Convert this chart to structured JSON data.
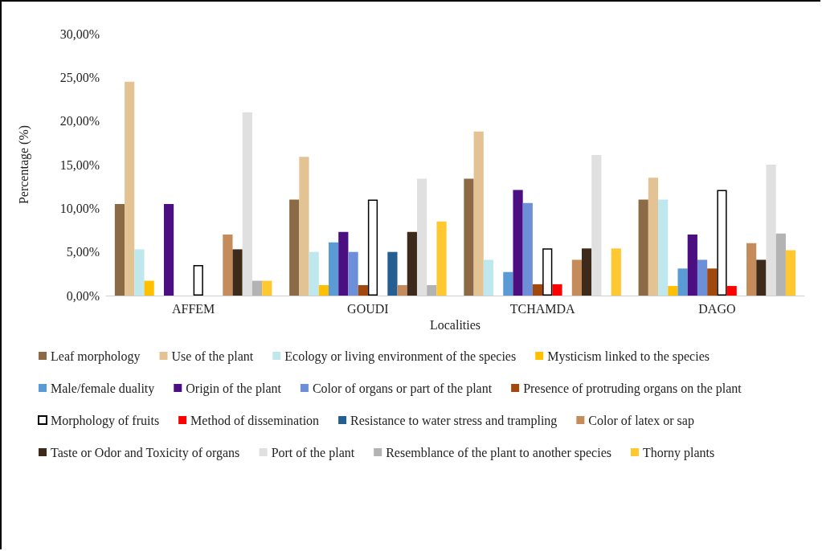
{
  "chart_data": {
    "type": "bar",
    "xlabel": "Localities",
    "ylabel": "Percentage (%)",
    "categories": [
      "AFFEM",
      "GOUDI",
      "TCHAMDA",
      "DAGO"
    ],
    "ylim": [
      0,
      30
    ],
    "yticks": [
      {
        "value": 0,
        "label": "0,00%"
      },
      {
        "value": 5,
        "label": "5,00%"
      },
      {
        "value": 10,
        "label": "10,00%"
      },
      {
        "value": 15,
        "label": "15,00%"
      },
      {
        "value": 20,
        "label": "20,00%"
      },
      {
        "value": 25,
        "label": "25,00%"
      },
      {
        "value": 30,
        "label": "30,00%"
      }
    ],
    "grid": false,
    "legend": "bottom",
    "series": [
      {
        "name": "Leaf morphology",
        "color": "#8b6a45",
        "values": [
          10.5,
          11.0,
          13.4,
          11.0
        ]
      },
      {
        "name": "Use of the plant",
        "color": "#e3c393",
        "values": [
          24.5,
          15.9,
          18.8,
          13.5
        ]
      },
      {
        "name": "Ecology or living environment of the species",
        "color": "#bfe8ee",
        "values": [
          5.3,
          5.0,
          4.1,
          11.0
        ]
      },
      {
        "name": "Mysticism linked to the species",
        "color": "#ffc000",
        "values": [
          1.7,
          1.2,
          0,
          1.1
        ]
      },
      {
        "name": "Male/female duality",
        "color": "#5b9bd5",
        "values": [
          0,
          6.1,
          2.7,
          3.1
        ]
      },
      {
        "name": "Origin of the plant",
        "color": "#4b0f82",
        "values": [
          10.5,
          7.3,
          12.1,
          7.0
        ]
      },
      {
        "name": "Color of organs or part of the plant",
        "color": "#6d8fd8",
        "values": [
          0,
          5.0,
          10.6,
          4.1
        ]
      },
      {
        "name": "Presence of protruding organs on the plant",
        "color": "#a0480e",
        "values": [
          0,
          1.2,
          1.3,
          3.1
        ]
      },
      {
        "name": "Morphology of fruits",
        "color": "#ffffff",
        "values": [
          3.5,
          11.0,
          5.4,
          12.1
        ]
      },
      {
        "name": "Method of dissemination",
        "color": "#ff0000",
        "values": [
          0,
          0,
          1.3,
          1.1
        ]
      },
      {
        "name": "Resistance to water stress and trampling",
        "color": "#255e91",
        "values": [
          0,
          5.0,
          0,
          0
        ]
      },
      {
        "name": "Color of latex or sap",
        "color": "#c68b5a",
        "values": [
          7.0,
          1.2,
          4.1,
          6.0
        ]
      },
      {
        "name": "Taste or Odor and Toxicity of organs",
        "color": "#3e2a1b",
        "values": [
          5.3,
          7.3,
          5.4,
          4.1
        ]
      },
      {
        "name": "Port of the plant",
        "color": "#e0e0e0",
        "values": [
          21.0,
          13.4,
          16.1,
          15.0
        ]
      },
      {
        "name": "Resemblance of the plant to another species",
        "color": "#b3b3b3",
        "values": [
          1.7,
          1.2,
          0,
          7.1
        ]
      },
      {
        "name": "Thorny plants",
        "color": "#ffc730",
        "values": [
          1.7,
          8.5,
          5.4,
          5.2
        ]
      }
    ]
  }
}
